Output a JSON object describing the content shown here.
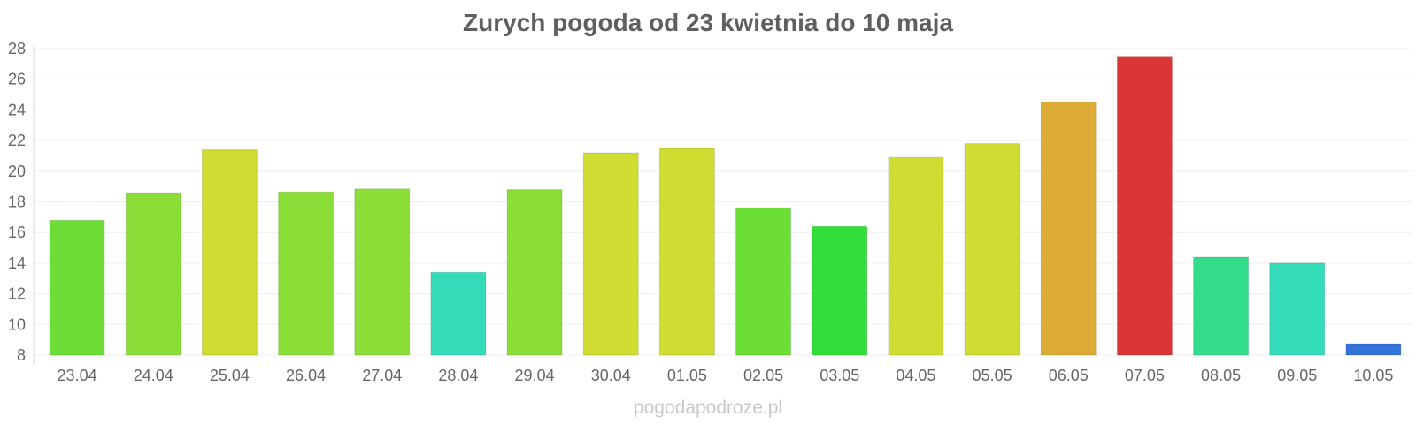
{
  "chart_data": {
    "type": "bar",
    "title": "Zurych pogoda od 23 kwietnia do 10 maja",
    "xlabel": "",
    "ylabel": "",
    "ylim": [
      8,
      28
    ],
    "yticks": [
      8,
      10,
      12,
      14,
      16,
      18,
      20,
      22,
      24,
      26,
      28
    ],
    "grid": true,
    "categories": [
      "23.04",
      "24.04",
      "25.04",
      "26.04",
      "27.04",
      "28.04",
      "29.04",
      "30.04",
      "01.05",
      "02.05",
      "03.05",
      "04.05",
      "05.05",
      "06.05",
      "07.05",
      "08.05",
      "09.05",
      "10.05"
    ],
    "values": [
      16.8,
      18.6,
      21.4,
      18.65,
      18.85,
      13.4,
      18.8,
      21.2,
      21.5,
      17.6,
      16.4,
      20.9,
      21.8,
      24.5,
      27.5,
      14.4,
      14.0,
      8.75
    ],
    "colors": [
      "#6cde37",
      "#8ade37",
      "#cfdd33",
      "#8ade37",
      "#8ade37",
      "#33dbb9",
      "#8ade37",
      "#cfdd33",
      "#cfdd33",
      "#6cde37",
      "#33de3a",
      "#cfdd33",
      "#cfdd33",
      "#dcab35",
      "#da3636",
      "#33dc8b",
      "#33dbb9",
      "#3574da"
    ]
  },
  "watermark": "pogodapodroze.pl"
}
